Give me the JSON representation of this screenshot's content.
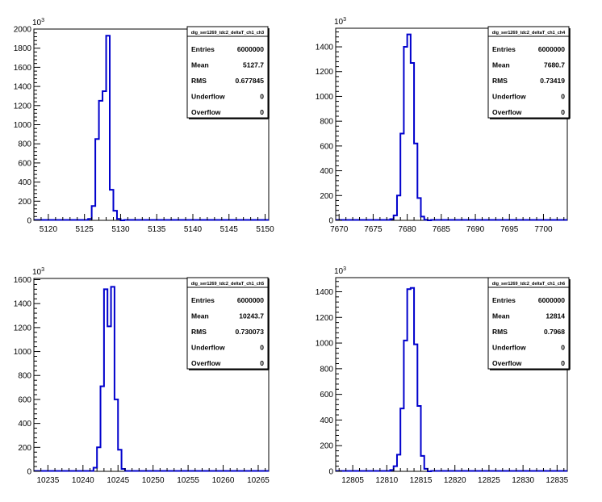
{
  "chart_data": [
    {
      "type": "histogram",
      "stats": {
        "title": "dig_ser1269_tdc2_deltaT_ch1_ch3",
        "rows": [
          {
            "label": "Entries",
            "value": "6000000"
          },
          {
            "label": "Mean",
            "value": "5127.7"
          },
          {
            "label": "RMS",
            "value": "0.677845"
          },
          {
            "label": "Underflow",
            "value": "0"
          },
          {
            "label": "Overflow",
            "value": "0"
          }
        ]
      },
      "y_exponent": "10^3",
      "xlim": [
        5118,
        5150.5
      ],
      "ylim": [
        0,
        2000
      ],
      "xticks": [
        5120,
        5125,
        5130,
        5135,
        5140,
        5145,
        5150
      ],
      "yticks": [
        0,
        200,
        400,
        600,
        800,
        1000,
        1200,
        1400,
        1600,
        1800,
        2000
      ],
      "bin_width": 0.5,
      "bins_x": [
        5125.5,
        5126,
        5126.5,
        5127,
        5127.5,
        5128,
        5128.5,
        5129,
        5129.5,
        5130
      ],
      "counts": [
        15,
        150,
        850,
        1250,
        1350,
        1930,
        320,
        100,
        15,
        0
      ]
    },
    {
      "type": "histogram",
      "stats": {
        "title": "dig_ser1269_tdc2_deltaT_ch1_ch4",
        "rows": [
          {
            "label": "Entries",
            "value": "6000000"
          },
          {
            "label": "Mean",
            "value": "7680.7"
          },
          {
            "label": "RMS",
            "value": "0.73419"
          },
          {
            "label": "Underflow",
            "value": "0"
          },
          {
            "label": "Overflow",
            "value": "0"
          }
        ]
      },
      "y_exponent": "10^3",
      "xlim": [
        7669.5,
        7703.5
      ],
      "ylim": [
        0,
        1550
      ],
      "xticks": [
        7670,
        7675,
        7680,
        7685,
        7690,
        7695,
        7700
      ],
      "yticks": [
        0,
        200,
        400,
        600,
        800,
        1000,
        1200,
        1400
      ],
      "bin_width": 0.5,
      "bins_x": [
        7677.5,
        7678,
        7678.5,
        7679,
        7679.5,
        7680,
        7680.5,
        7681,
        7681.5,
        7682,
        7682.5,
        7683
      ],
      "counts": [
        10,
        40,
        200,
        700,
        1400,
        1500,
        1270,
        620,
        180,
        30,
        5,
        0
      ]
    },
    {
      "type": "histogram",
      "stats": {
        "title": "dig_ser1269_tdc2_deltaT_ch1_ch5",
        "rows": [
          {
            "label": "Entries",
            "value": "6000000"
          },
          {
            "label": "Mean",
            "value": "10243.7"
          },
          {
            "label": "RMS",
            "value": "0.730073"
          },
          {
            "label": "Underflow",
            "value": "0"
          },
          {
            "label": "Overflow",
            "value": "0"
          }
        ]
      },
      "y_exponent": "10^3",
      "xlim": [
        10233,
        10266.5
      ],
      "ylim": [
        0,
        1610
      ],
      "xticks": [
        10235,
        10240,
        10245,
        10250,
        10255,
        10260,
        10265
      ],
      "yticks": [
        0,
        200,
        400,
        600,
        800,
        1000,
        1200,
        1400,
        1600
      ],
      "bin_width": 0.5,
      "bins_x": [
        10241.5,
        10242,
        10242.5,
        10243,
        10243.5,
        10244,
        10244.5,
        10245,
        10245.5
      ],
      "counts": [
        30,
        200,
        710,
        1520,
        1210,
        1540,
        600,
        180,
        20
      ]
    },
    {
      "type": "histogram",
      "stats": {
        "title": "dig_ser1269_tdc2_deltaT_ch1_ch6",
        "rows": [
          {
            "label": "Entries",
            "value": "6000000"
          },
          {
            "label": "Mean",
            "value": "12814"
          },
          {
            "label": "RMS",
            "value": "0.7968"
          },
          {
            "label": "Underflow",
            "value": "0"
          },
          {
            "label": "Overflow",
            "value": "0"
          }
        ]
      },
      "y_exponent": "10^3",
      "xlim": [
        12802.5,
        12836.5
      ],
      "ylim": [
        0,
        1510
      ],
      "xticks": [
        12805,
        12810,
        12815,
        12820,
        12825,
        12830,
        12835
      ],
      "yticks": [
        0,
        200,
        400,
        600,
        800,
        1000,
        1200,
        1400
      ],
      "bin_width": 0.5,
      "bins_x": [
        12810.5,
        12811,
        12811.5,
        12812,
        12812.5,
        12813,
        12813.5,
        12814,
        12814.5,
        12815,
        12815.5,
        12816
      ],
      "counts": [
        10,
        40,
        130,
        490,
        1020,
        1420,
        1430,
        990,
        510,
        120,
        20,
        0
      ]
    }
  ]
}
